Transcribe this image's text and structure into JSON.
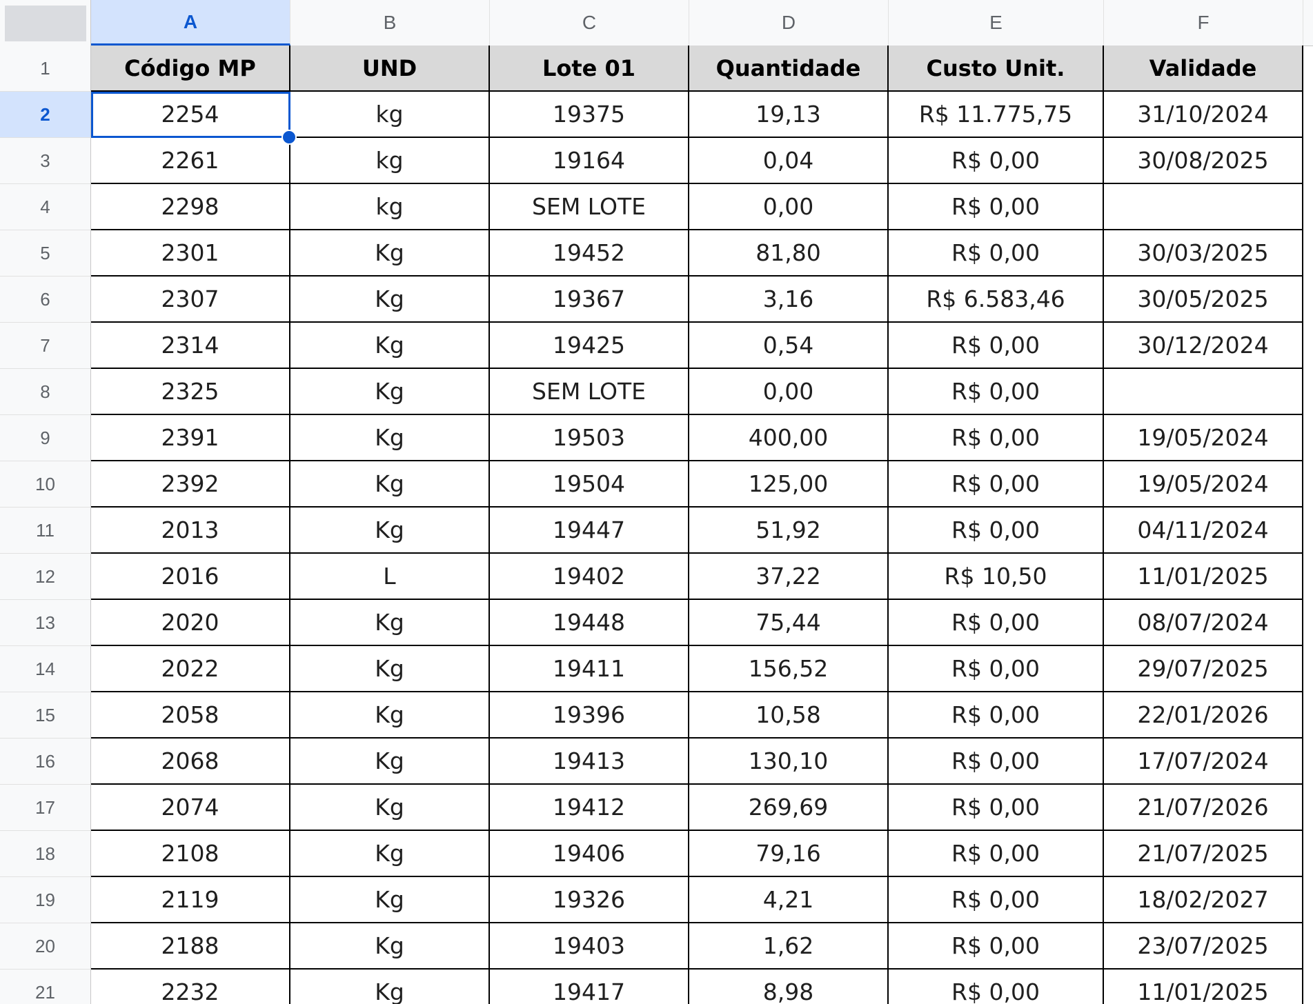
{
  "columns": [
    "A",
    "B",
    "C",
    "D",
    "E",
    "F"
  ],
  "rows": [
    "1",
    "2",
    "3",
    "4",
    "5",
    "6",
    "7",
    "8",
    "9",
    "10",
    "11",
    "12",
    "13",
    "14",
    "15",
    "16",
    "17",
    "18",
    "19",
    "20",
    "21"
  ],
  "header": [
    "Código MP",
    "UND",
    "Lote 01",
    "Quantidade",
    "Custo Unit.",
    "Validade"
  ],
  "data": [
    [
      "2254",
      "kg",
      "19375",
      "19,13",
      "R$ 11.775,75",
      "31/10/2024"
    ],
    [
      "2261",
      "kg",
      "19164",
      "0,04",
      "R$ 0,00",
      "30/08/2025"
    ],
    [
      "2298",
      "kg",
      "SEM LOTE",
      "0,00",
      "R$ 0,00",
      ""
    ],
    [
      "2301",
      "Kg",
      "19452",
      "81,80",
      "R$ 0,00",
      "30/03/2025"
    ],
    [
      "2307",
      "Kg",
      "19367",
      "3,16",
      "R$ 6.583,46",
      "30/05/2025"
    ],
    [
      "2314",
      "Kg",
      "19425",
      "0,54",
      "R$ 0,00",
      "30/12/2024"
    ],
    [
      "2325",
      "Kg",
      "SEM LOTE",
      "0,00",
      "R$ 0,00",
      ""
    ],
    [
      "2391",
      "Kg",
      "19503",
      "400,00",
      "R$ 0,00",
      "19/05/2024"
    ],
    [
      "2392",
      "Kg",
      "19504",
      "125,00",
      "R$ 0,00",
      "19/05/2024"
    ],
    [
      "2013",
      "Kg",
      "19447",
      "51,92",
      "R$ 0,00",
      "04/11/2024"
    ],
    [
      "2016",
      "L",
      "19402",
      "37,22",
      "R$ 10,50",
      "11/01/2025"
    ],
    [
      "2020",
      "Kg",
      "19448",
      "75,44",
      "R$ 0,00",
      "08/07/2024"
    ],
    [
      "2022",
      "Kg",
      "19411",
      "156,52",
      "R$ 0,00",
      "29/07/2025"
    ],
    [
      "2058",
      "Kg",
      "19396",
      "10,58",
      "R$ 0,00",
      "22/01/2026"
    ],
    [
      "2068",
      "Kg",
      "19413",
      "130,10",
      "R$ 0,00",
      "17/07/2024"
    ],
    [
      "2074",
      "Kg",
      "19412",
      "269,69",
      "R$ 0,00",
      "21/07/2026"
    ],
    [
      "2108",
      "Kg",
      "19406",
      "79,16",
      "R$ 0,00",
      "21/07/2025"
    ],
    [
      "2119",
      "Kg",
      "19326",
      "4,21",
      "R$ 0,00",
      "18/02/2027"
    ],
    [
      "2188",
      "Kg",
      "19403",
      "1,62",
      "R$ 0,00",
      "23/07/2025"
    ],
    [
      "2232",
      "Kg",
      "19417",
      "8,98",
      "R$ 0,00",
      "11/01/2025"
    ]
  ],
  "selection": {
    "column": "A",
    "row": "2"
  },
  "colors": {
    "accent": "#0b57d0",
    "selected_header_bg": "#d3e3fd",
    "table_header_bg": "#d9d9d9"
  }
}
